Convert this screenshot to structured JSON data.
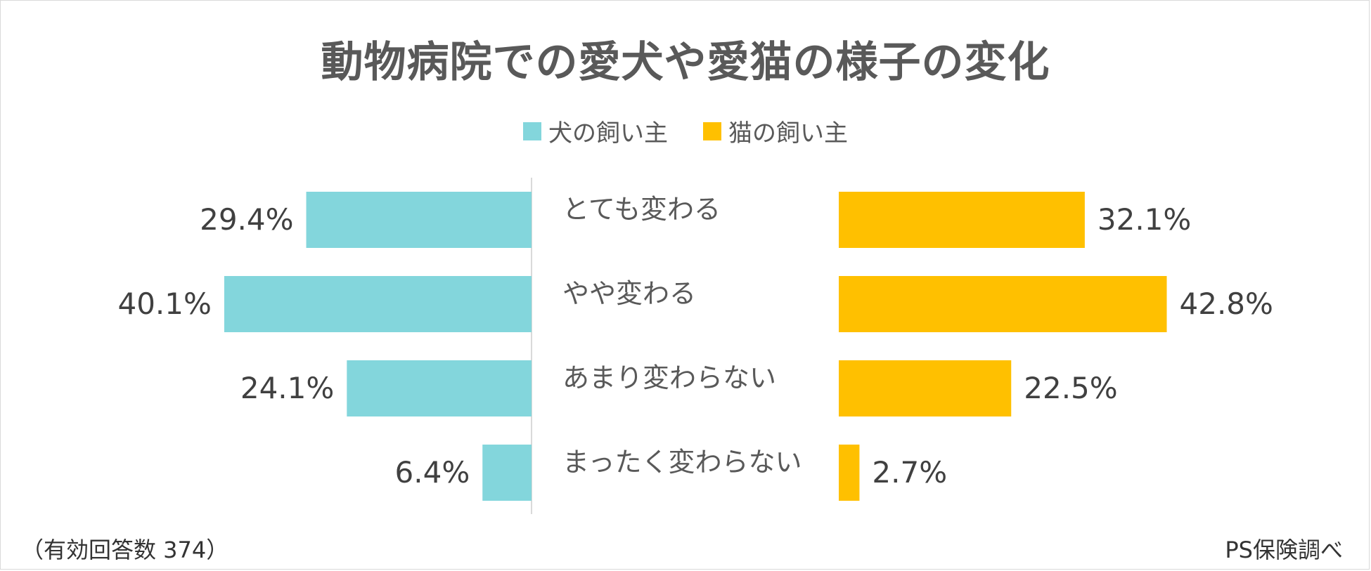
{
  "chart_data": {
    "type": "bar",
    "title": "動物病院での愛犬や愛猫の様子の変化",
    "categories": [
      "とても変わる",
      "やや変わる",
      "あまり変わらない",
      "まったく変わらない"
    ],
    "series": [
      {
        "name": "犬の飼い主",
        "values": [
          29.4,
          40.1,
          24.1,
          6.4
        ],
        "labels": [
          "29.4%",
          "40.1%",
          "24.1%",
          "6.4%"
        ],
        "color": "#83d6dc"
      },
      {
        "name": "猫の飼い主",
        "values": [
          32.1,
          42.8,
          22.5,
          2.7
        ],
        "labels": [
          "32.1%",
          "42.8%",
          "22.5%",
          "2.7%"
        ],
        "color": "#ffc000"
      }
    ],
    "legend_position": "top",
    "grid": false
  },
  "footnote": "（有効回答数 374）",
  "source": "PS保険調べ",
  "colors": {
    "text": "#595959",
    "axis": "#d9d9d9"
  }
}
